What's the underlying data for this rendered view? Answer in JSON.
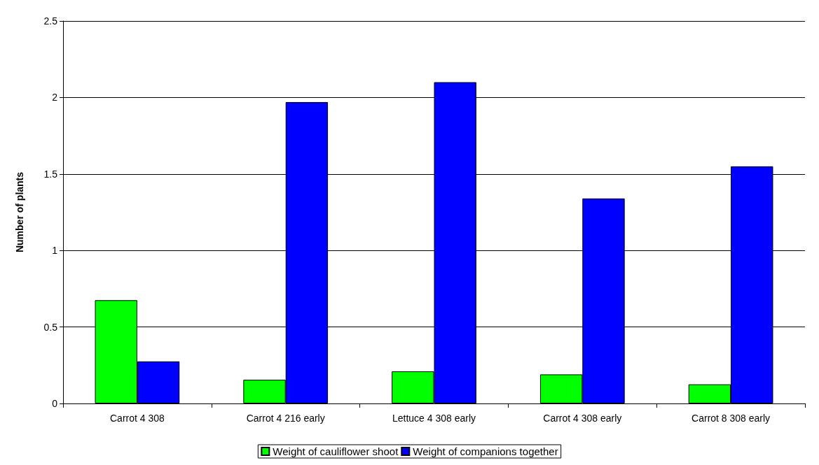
{
  "chart_data": {
    "type": "bar",
    "ylabel": "Number of plants",
    "categories": [
      "Carrot 4 308",
      "Carrot 4 216 early",
      "Lettuce 4 308 early",
      "Carrot 4 308 early",
      "Carrot 8 308 early"
    ],
    "series": [
      {
        "name": "Weight of cauliflower shoot",
        "color": "#00ff00",
        "values": [
          0.675,
          0.155,
          0.21,
          0.19,
          0.125
        ]
      },
      {
        "name": "Weight of companions together",
        "color": "#0000ff",
        "values": [
          0.275,
          1.97,
          2.1,
          1.34,
          1.55
        ]
      }
    ],
    "ylim": [
      0,
      2.5
    ],
    "yticks": [
      0,
      0.5,
      1,
      1.5,
      2,
      2.5
    ],
    "grid": "y",
    "legend": "bottom"
  }
}
